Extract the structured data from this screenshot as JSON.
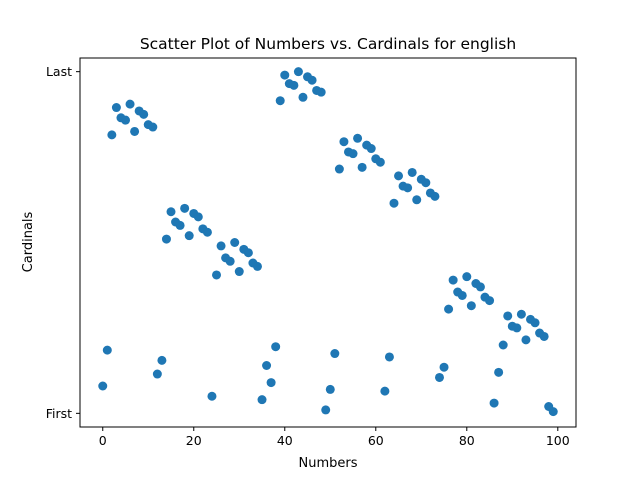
{
  "chart_data": {
    "type": "scatter",
    "title": "Scatter Plot of Numbers vs. Cardinals for english",
    "xlabel": "Numbers",
    "ylabel": "Cardinals",
    "xlim": [
      -5,
      104
    ],
    "ylim": [
      -0.04,
      1.04
    ],
    "x_ticks": [
      0,
      20,
      40,
      60,
      80,
      100
    ],
    "y_ticks": [
      {
        "value": 0,
        "label": "First"
      },
      {
        "value": 1,
        "label": "Last"
      }
    ],
    "grid": false,
    "marker_color": "#1f77b4",
    "points": [
      {
        "x": 0,
        "y": 0.08
      },
      {
        "x": 1,
        "y": 0.185
      },
      {
        "x": 2,
        "y": 0.815
      },
      {
        "x": 3,
        "y": 0.895
      },
      {
        "x": 4,
        "y": 0.865
      },
      {
        "x": 5,
        "y": 0.858
      },
      {
        "x": 6,
        "y": 0.905
      },
      {
        "x": 7,
        "y": 0.825
      },
      {
        "x": 8,
        "y": 0.885
      },
      {
        "x": 9,
        "y": 0.875
      },
      {
        "x": 10,
        "y": 0.845
      },
      {
        "x": 11,
        "y": 0.838
      },
      {
        "x": 12,
        "y": 0.115
      },
      {
        "x": 13,
        "y": 0.155
      },
      {
        "x": 14,
        "y": 0.51
      },
      {
        "x": 15,
        "y": 0.59
      },
      {
        "x": 16,
        "y": 0.56
      },
      {
        "x": 17,
        "y": 0.55
      },
      {
        "x": 18,
        "y": 0.6
      },
      {
        "x": 19,
        "y": 0.52
      },
      {
        "x": 20,
        "y": 0.585
      },
      {
        "x": 21,
        "y": 0.575
      },
      {
        "x": 22,
        "y": 0.54
      },
      {
        "x": 23,
        "y": 0.53
      },
      {
        "x": 24,
        "y": 0.05
      },
      {
        "x": 25,
        "y": 0.405
      },
      {
        "x": 26,
        "y": 0.49
      },
      {
        "x": 27,
        "y": 0.455
      },
      {
        "x": 28,
        "y": 0.445
      },
      {
        "x": 29,
        "y": 0.5
      },
      {
        "x": 30,
        "y": 0.415
      },
      {
        "x": 31,
        "y": 0.48
      },
      {
        "x": 32,
        "y": 0.47
      },
      {
        "x": 33,
        "y": 0.44
      },
      {
        "x": 34,
        "y": 0.43
      },
      {
        "x": 35,
        "y": 0.04
      },
      {
        "x": 36,
        "y": 0.14
      },
      {
        "x": 37,
        "y": 0.09
      },
      {
        "x": 38,
        "y": 0.195
      },
      {
        "x": 39,
        "y": 0.915
      },
      {
        "x": 40,
        "y": 0.99
      },
      {
        "x": 41,
        "y": 0.965
      },
      {
        "x": 42,
        "y": 0.96
      },
      {
        "x": 43,
        "y": 1.0
      },
      {
        "x": 44,
        "y": 0.925
      },
      {
        "x": 45,
        "y": 0.985
      },
      {
        "x": 46,
        "y": 0.975
      },
      {
        "x": 47,
        "y": 0.945
      },
      {
        "x": 48,
        "y": 0.94
      },
      {
        "x": 49,
        "y": 0.01
      },
      {
        "x": 50,
        "y": 0.07
      },
      {
        "x": 51,
        "y": 0.175
      },
      {
        "x": 52,
        "y": 0.715
      },
      {
        "x": 53,
        "y": 0.795
      },
      {
        "x": 54,
        "y": 0.765
      },
      {
        "x": 55,
        "y": 0.76
      },
      {
        "x": 56,
        "y": 0.805
      },
      {
        "x": 57,
        "y": 0.72
      },
      {
        "x": 58,
        "y": 0.785
      },
      {
        "x": 59,
        "y": 0.775
      },
      {
        "x": 60,
        "y": 0.745
      },
      {
        "x": 61,
        "y": 0.735
      },
      {
        "x": 62,
        "y": 0.065
      },
      {
        "x": 63,
        "y": 0.165
      },
      {
        "x": 64,
        "y": 0.615
      },
      {
        "x": 65,
        "y": 0.695
      },
      {
        "x": 66,
        "y": 0.665
      },
      {
        "x": 67,
        "y": 0.66
      },
      {
        "x": 68,
        "y": 0.705
      },
      {
        "x": 69,
        "y": 0.625
      },
      {
        "x": 70,
        "y": 0.685
      },
      {
        "x": 71,
        "y": 0.675
      },
      {
        "x": 72,
        "y": 0.645
      },
      {
        "x": 73,
        "y": 0.635
      },
      {
        "x": 74,
        "y": 0.105
      },
      {
        "x": 75,
        "y": 0.135
      },
      {
        "x": 76,
        "y": 0.305
      },
      {
        "x": 77,
        "y": 0.39
      },
      {
        "x": 78,
        "y": 0.355
      },
      {
        "x": 79,
        "y": 0.345
      },
      {
        "x": 80,
        "y": 0.4
      },
      {
        "x": 81,
        "y": 0.315
      },
      {
        "x": 82,
        "y": 0.38
      },
      {
        "x": 83,
        "y": 0.37
      },
      {
        "x": 84,
        "y": 0.34
      },
      {
        "x": 85,
        "y": 0.33
      },
      {
        "x": 86,
        "y": 0.03
      },
      {
        "x": 87,
        "y": 0.12
      },
      {
        "x": 88,
        "y": 0.2
      },
      {
        "x": 89,
        "y": 0.285
      },
      {
        "x": 90,
        "y": 0.255
      },
      {
        "x": 91,
        "y": 0.25
      },
      {
        "x": 92,
        "y": 0.29
      },
      {
        "x": 93,
        "y": 0.215
      },
      {
        "x": 94,
        "y": 0.275
      },
      {
        "x": 95,
        "y": 0.265
      },
      {
        "x": 96,
        "y": 0.235
      },
      {
        "x": 97,
        "y": 0.225
      },
      {
        "x": 98,
        "y": 0.02
      },
      {
        "x": 99,
        "y": 0.005
      }
    ]
  }
}
